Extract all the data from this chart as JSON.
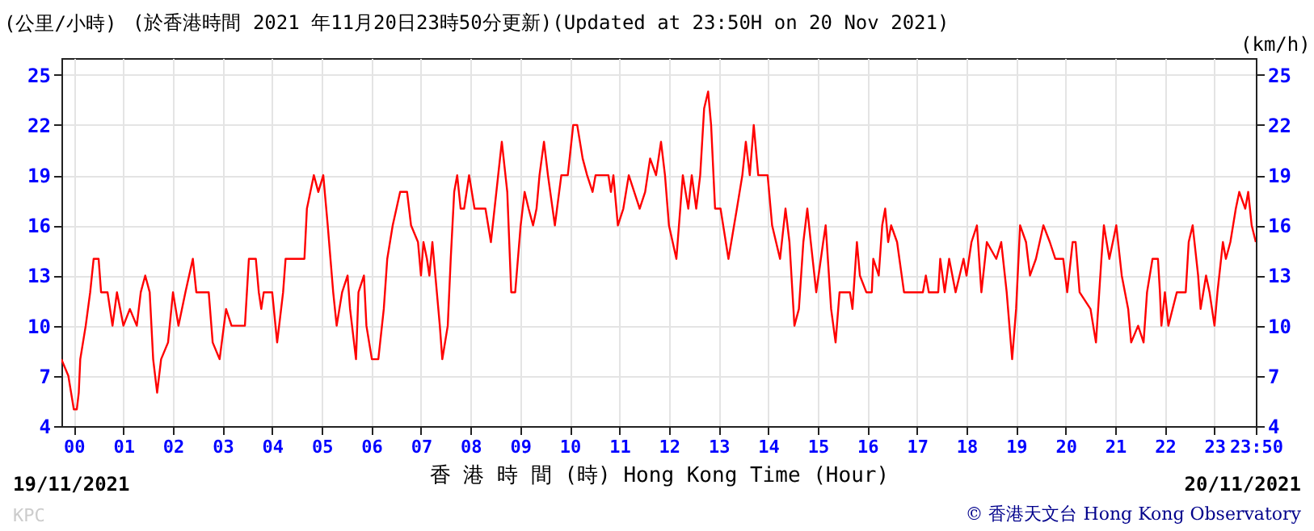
{
  "chart_data": {
    "type": "line",
    "title": "(於香港時間 2021 年11月20日23時50分更新)(Updated at 23:50H on 20 Nov 2021)",
    "xlabel": "香 港 時 間 (時) Hong Kong Time (Hour)",
    "ylabel": "(公里/小時)",
    "y2label": "(km/h)",
    "annotations": [
      "19/11/2021",
      "20/11/2021",
      "KPC",
      "© 香港天文台 Hong Kong Observatory"
    ],
    "x": [
      -0.25,
      -0.11,
      0.0,
      0.06,
      0.1,
      0.13,
      0.24,
      0.33,
      0.4,
      0.5,
      0.55,
      0.68,
      0.73,
      0.78,
      0.87,
      1.0,
      1.13,
      1.27,
      1.35,
      1.44,
      1.53,
      1.6,
      1.68,
      1.76,
      1.9,
      2.0,
      2.11,
      2.25,
      2.4,
      2.47,
      2.72,
      2.8,
      2.94,
      3.07,
      3.18,
      3.45,
      3.53,
      3.67,
      3.73,
      3.78,
      3.83,
      4.0,
      4.1,
      4.22,
      4.27,
      4.65,
      4.7,
      4.84,
      4.93,
      5.03,
      5.12,
      5.23,
      5.3,
      5.41,
      5.52,
      5.57,
      5.69,
      5.74,
      5.85,
      5.9,
      6.01,
      6.14,
      6.25,
      6.32,
      6.43,
      6.58,
      6.72,
      6.8,
      6.94,
      7.0,
      7.05,
      7.12,
      7.17,
      7.23,
      7.38,
      7.43,
      7.54,
      7.6,
      7.67,
      7.73,
      7.8,
      7.87,
      7.97,
      8.08,
      8.3,
      8.41,
      8.52,
      8.63,
      8.74,
      8.82,
      8.9,
      9.01,
      9.09,
      9.17,
      9.26,
      9.33,
      9.39,
      9.48,
      9.56,
      9.7,
      9.83,
      9.96,
      10.07,
      10.15,
      10.26,
      10.35,
      10.46,
      10.52,
      10.78,
      10.83,
      10.88,
      10.97,
      11.08,
      11.19,
      11.3,
      11.41,
      11.52,
      11.62,
      11.74,
      11.84,
      11.92,
      12.0,
      12.15,
      12.28,
      12.39,
      12.46,
      12.55,
      12.63,
      12.71,
      12.79,
      12.85,
      12.93,
      13.04,
      13.2,
      13.37,
      13.48,
      13.55,
      13.63,
      13.71,
      13.8,
      13.99,
      14.08,
      14.16,
      14.24,
      14.35,
      14.43,
      14.53,
      14.62,
      14.71,
      14.79,
      14.86,
      14.97,
      15.11,
      15.16,
      15.27,
      15.36,
      15.44,
      15.65,
      15.7,
      15.79,
      15.85,
      15.98,
      16.09,
      16.12,
      16.23,
      16.3,
      16.36,
      16.42,
      16.48,
      16.6,
      16.74,
      17.12,
      17.18,
      17.24,
      17.43,
      17.47,
      17.56,
      17.65,
      17.78,
      17.94,
      18.0,
      18.1,
      18.21,
      18.3,
      18.41,
      18.6,
      18.7,
      18.81,
      18.92,
      19.0,
      19.08,
      19.2,
      19.28,
      19.4,
      19.55,
      19.68,
      19.79,
      19.95,
      20.03,
      20.14,
      20.2,
      20.28,
      20.5,
      20.61,
      20.72,
      20.77,
      20.88,
      21.02,
      21.13,
      21.26,
      21.32,
      21.46,
      21.57,
      21.64,
      21.75,
      21.86,
      21.9,
      21.93,
      22.0,
      22.07,
      22.24,
      22.42,
      22.48,
      22.56,
      22.67,
      22.72,
      22.83,
      22.9,
      23.0,
      23.06,
      23.17,
      23.23,
      23.32,
      23.43,
      23.5,
      23.62,
      23.68,
      23.75,
      23.8333
    ],
    "series": [
      {
        "color": "#ff0000",
        "values": [
          8,
          7,
          5,
          5,
          6,
          8,
          10,
          12,
          14,
          14,
          12,
          12,
          11,
          10,
          12,
          10,
          11,
          10,
          12,
          13,
          12,
          8,
          6,
          8,
          9,
          12,
          10,
          12,
          14,
          12,
          12,
          9,
          8,
          11,
          10,
          10,
          14,
          14,
          12,
          11,
          12,
          12,
          9,
          12,
          14,
          14,
          17,
          19,
          18,
          19,
          16,
          12,
          10,
          12,
          13,
          11,
          8,
          12,
          13,
          10,
          8,
          8,
          11,
          14,
          16,
          18,
          18,
          16,
          15,
          13,
          15,
          14,
          13,
          15,
          10,
          8,
          10,
          14,
          18,
          19,
          17,
          17,
          19,
          17,
          17,
          15,
          18,
          21,
          18,
          12,
          12,
          16,
          18,
          17,
          16,
          17,
          19,
          21,
          19,
          16,
          19,
          19,
          22,
          22,
          20,
          19,
          18,
          19,
          19,
          18,
          19,
          16,
          17,
          19,
          18,
          17,
          18,
          20,
          19,
          21,
          19,
          16,
          14,
          19,
          17,
          19,
          17,
          19,
          23,
          24,
          22,
          17,
          17,
          14,
          17,
          19,
          21,
          19,
          22,
          19,
          19,
          16,
          15,
          14,
          17,
          15,
          10,
          11,
          15,
          17,
          15,
          12,
          15,
          16,
          11,
          9,
          12,
          12,
          11,
          15,
          13,
          12,
          12,
          14,
          13,
          16,
          17,
          15,
          16,
          15,
          12,
          12,
          13,
          12,
          12,
          14,
          12,
          14,
          12,
          14,
          13,
          15,
          16,
          12,
          15,
          14,
          15,
          12,
          8,
          11,
          16,
          15,
          13,
          14,
          16,
          15,
          14,
          14,
          12,
          15,
          15,
          12,
          11,
          9,
          14,
          16,
          14,
          16,
          13,
          11,
          9,
          10,
          9,
          12,
          14,
          14,
          12,
          10,
          12,
          10,
          12,
          12,
          15,
          16,
          13,
          11,
          13,
          12,
          10,
          12,
          15,
          14,
          15,
          17,
          18,
          17,
          18,
          16,
          15
        ]
      }
    ],
    "xlim": [
      -0.25,
      23.8333
    ],
    "xticks": [
      {
        "value": 0,
        "label": "00"
      },
      {
        "value": 1,
        "label": "01"
      },
      {
        "value": 2,
        "label": "02"
      },
      {
        "value": 3,
        "label": "03"
      },
      {
        "value": 4,
        "label": "04"
      },
      {
        "value": 5,
        "label": "05"
      },
      {
        "value": 6,
        "label": "06"
      },
      {
        "value": 7,
        "label": "07"
      },
      {
        "value": 8,
        "label": "08"
      },
      {
        "value": 9,
        "label": "09"
      },
      10,
      11,
      12,
      13,
      14,
      15,
      16,
      17,
      18,
      19,
      20,
      21,
      22,
      23,
      {
        "value": 23.8333,
        "label": "23:50"
      }
    ],
    "ylim": [
      4,
      26
    ],
    "yticks": [
      4,
      7,
      10,
      13,
      16,
      19,
      22,
      25
    ],
    "y2lim": [
      4,
      26
    ],
    "y2ticks": [
      4,
      7,
      10,
      13,
      16,
      19,
      22,
      25
    ],
    "grid": true,
    "marker": "none",
    "line_style": "solid"
  }
}
